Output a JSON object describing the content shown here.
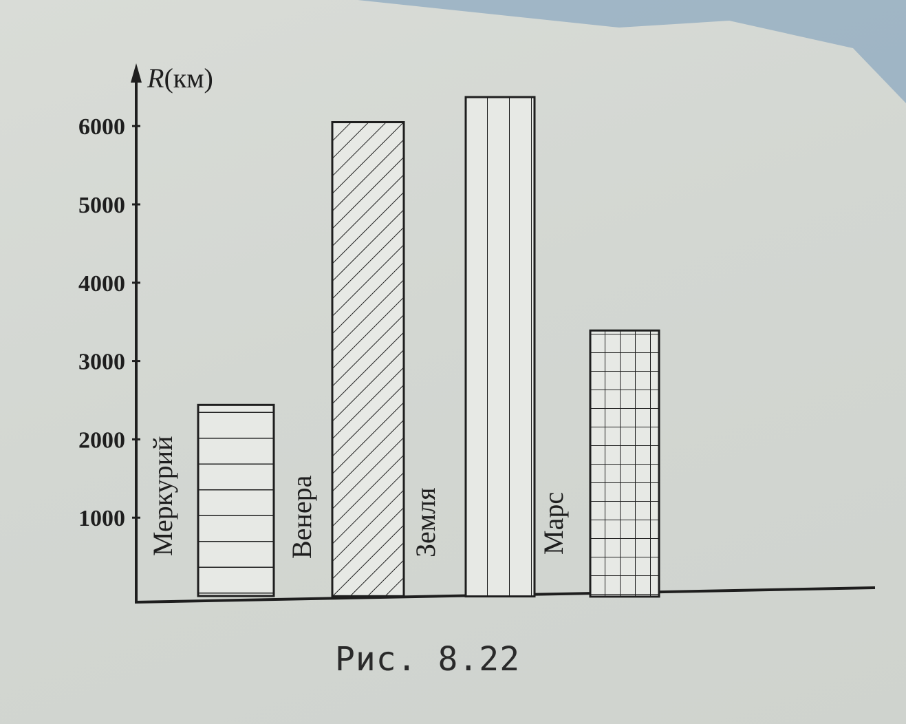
{
  "caption": "Рис. 8.22",
  "chart_data": {
    "type": "bar",
    "title": "",
    "xlabel": "",
    "ylabel": {
      "symbol": "R",
      "unit": "(км)"
    },
    "categories": [
      "Меркурий",
      "Венера",
      "Земля",
      "Марс"
    ],
    "values": [
      2440,
      6050,
      6370,
      3390
    ],
    "patterns": [
      "horizontal-lines",
      "diagonal-lines",
      "vertical-lines",
      "grid"
    ],
    "yticks": [
      1000,
      2000,
      3000,
      4000,
      5000,
      6000
    ],
    "ylim": [
      0,
      6000
    ],
    "grid": false,
    "legend": "none"
  },
  "colors": {
    "ink": "#1e1e1e",
    "bar_fill": "#e7e9e5",
    "page_top_right": "#7a9fc0"
  }
}
